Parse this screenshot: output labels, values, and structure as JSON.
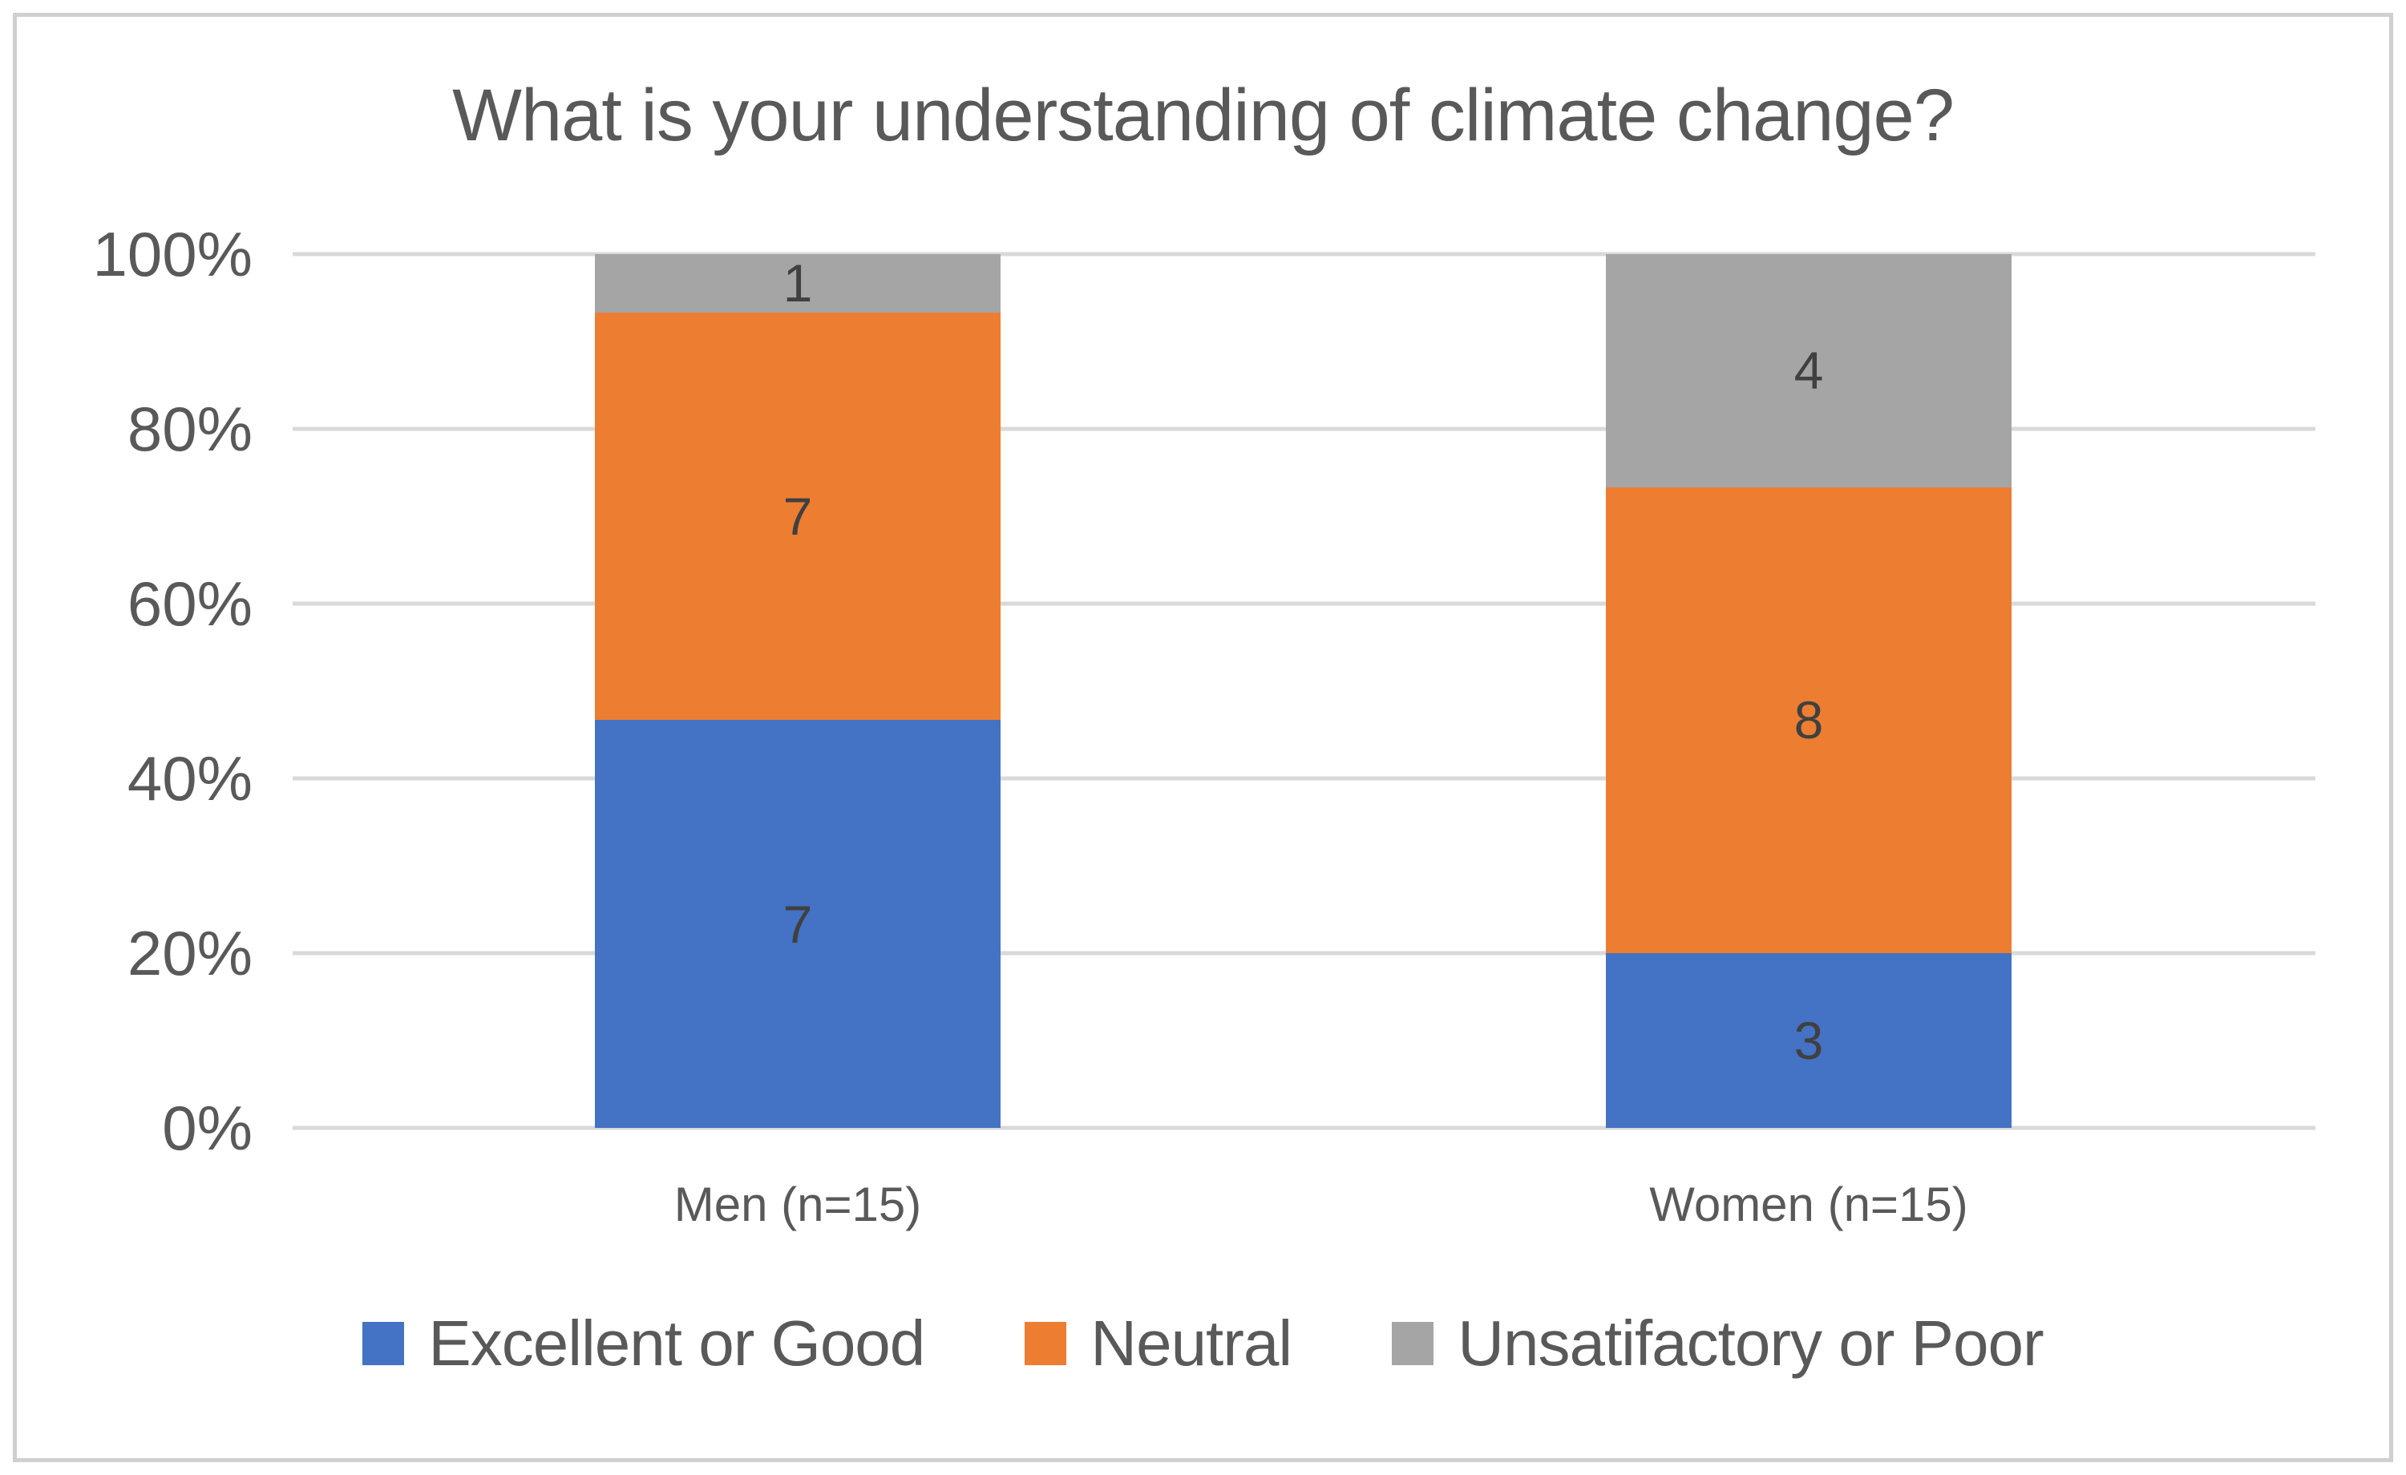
{
  "chart_data": {
    "type": "bar",
    "subtype": "stacked-100-percent-column",
    "title": "What is your understanding of climate change?",
    "categories": [
      "Men (n=15)",
      "Women (n=15)"
    ],
    "totals": [
      15,
      15
    ],
    "series": [
      {
        "name": "Excellent or Good",
        "color": "#4472C4",
        "values": [
          7,
          3
        ]
      },
      {
        "name": "Neutral",
        "color": "#ED7D31",
        "values": [
          7,
          8
        ]
      },
      {
        "name": "Unsatifactory or Poor",
        "color": "#A5A5A5",
        "values": [
          1,
          4
        ]
      }
    ],
    "y_axis": {
      "ticks": [
        {
          "label": "0%",
          "percent": 0
        },
        {
          "label": "20%",
          "percent": 20
        },
        {
          "label": "40%",
          "percent": 40
        },
        {
          "label": "60%",
          "percent": 60
        },
        {
          "label": "80%",
          "percent": 80
        },
        {
          "label": "100%",
          "percent": 100
        }
      ],
      "min": 0,
      "max": 100,
      "format": "percent"
    },
    "grid": true,
    "legend_position": "bottom",
    "colors": {
      "gridline": "#D9D9D9",
      "axis_text": "#595959",
      "title_text": "#595959",
      "data_label_text": "#404040",
      "border": "#CFCFCF"
    }
  }
}
